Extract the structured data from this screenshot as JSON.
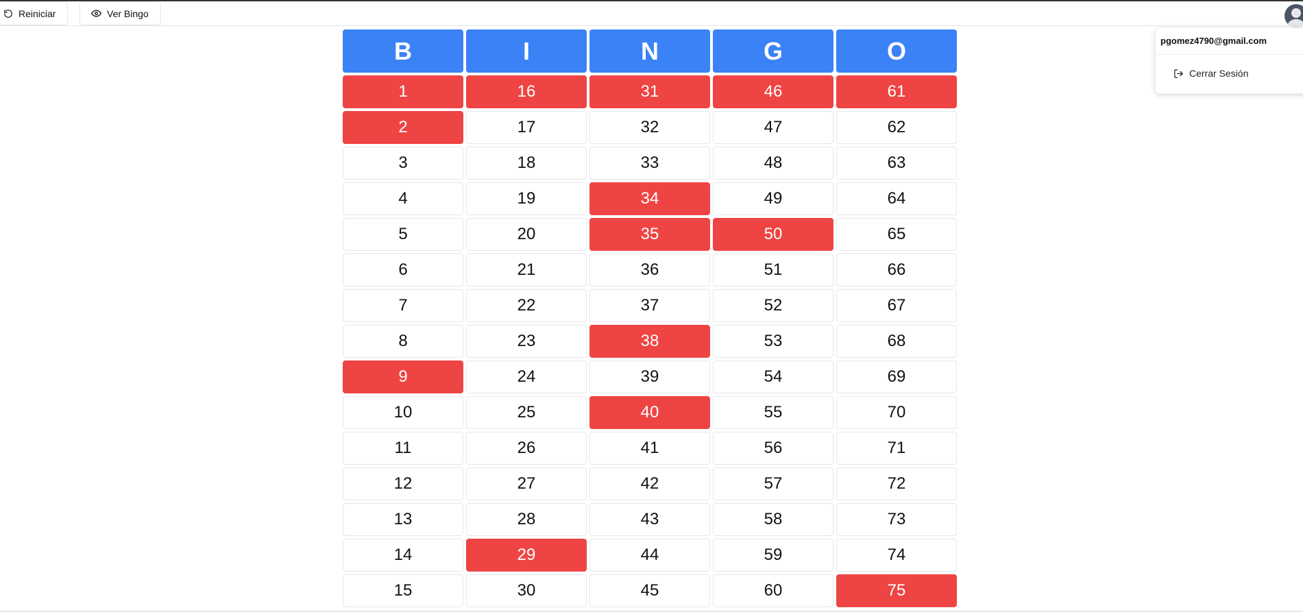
{
  "toolbar": {
    "reset_label": "Reiniciar",
    "reset_icon": "refresh-icon",
    "view_label": "Ver Bingo",
    "view_icon": "eye-icon"
  },
  "user_menu": {
    "email": "pgomez4790@gmail.com",
    "logout_label": "Cerrar Sesión",
    "logout_icon": "logout-icon"
  },
  "colors": {
    "header": "#3b82f6",
    "marked": "#ef4444",
    "unmarked": "#ffffff"
  },
  "bingo": {
    "headers": [
      "B",
      "I",
      "N",
      "G",
      "O"
    ],
    "rows": [
      [
        {
          "n": "1",
          "m": true
        },
        {
          "n": "16",
          "m": true
        },
        {
          "n": "31",
          "m": true
        },
        {
          "n": "46",
          "m": true
        },
        {
          "n": "61",
          "m": true
        }
      ],
      [
        {
          "n": "2",
          "m": true
        },
        {
          "n": "17",
          "m": false
        },
        {
          "n": "32",
          "m": false
        },
        {
          "n": "47",
          "m": false
        },
        {
          "n": "62",
          "m": false
        }
      ],
      [
        {
          "n": "3",
          "m": false
        },
        {
          "n": "18",
          "m": false
        },
        {
          "n": "33",
          "m": false
        },
        {
          "n": "48",
          "m": false
        },
        {
          "n": "63",
          "m": false
        }
      ],
      [
        {
          "n": "4",
          "m": false
        },
        {
          "n": "19",
          "m": false
        },
        {
          "n": "34",
          "m": true
        },
        {
          "n": "49",
          "m": false
        },
        {
          "n": "64",
          "m": false
        }
      ],
      [
        {
          "n": "5",
          "m": false
        },
        {
          "n": "20",
          "m": false
        },
        {
          "n": "35",
          "m": true
        },
        {
          "n": "50",
          "m": true
        },
        {
          "n": "65",
          "m": false
        }
      ],
      [
        {
          "n": "6",
          "m": false
        },
        {
          "n": "21",
          "m": false
        },
        {
          "n": "36",
          "m": false
        },
        {
          "n": "51",
          "m": false
        },
        {
          "n": "66",
          "m": false
        }
      ],
      [
        {
          "n": "7",
          "m": false
        },
        {
          "n": "22",
          "m": false
        },
        {
          "n": "37",
          "m": false
        },
        {
          "n": "52",
          "m": false
        },
        {
          "n": "67",
          "m": false
        }
      ],
      [
        {
          "n": "8",
          "m": false
        },
        {
          "n": "23",
          "m": false
        },
        {
          "n": "38",
          "m": true
        },
        {
          "n": "53",
          "m": false
        },
        {
          "n": "68",
          "m": false
        }
      ],
      [
        {
          "n": "9",
          "m": true
        },
        {
          "n": "24",
          "m": false
        },
        {
          "n": "39",
          "m": false
        },
        {
          "n": "54",
          "m": false
        },
        {
          "n": "69",
          "m": false
        }
      ],
      [
        {
          "n": "10",
          "m": false
        },
        {
          "n": "25",
          "m": false
        },
        {
          "n": "40",
          "m": true
        },
        {
          "n": "55",
          "m": false
        },
        {
          "n": "70",
          "m": false
        }
      ],
      [
        {
          "n": "11",
          "m": false
        },
        {
          "n": "26",
          "m": false
        },
        {
          "n": "41",
          "m": false
        },
        {
          "n": "56",
          "m": false
        },
        {
          "n": "71",
          "m": false
        }
      ],
      [
        {
          "n": "12",
          "m": false
        },
        {
          "n": "27",
          "m": false
        },
        {
          "n": "42",
          "m": false
        },
        {
          "n": "57",
          "m": false
        },
        {
          "n": "72",
          "m": false
        }
      ],
      [
        {
          "n": "13",
          "m": false
        },
        {
          "n": "28",
          "m": false
        },
        {
          "n": "43",
          "m": false
        },
        {
          "n": "58",
          "m": false
        },
        {
          "n": "73",
          "m": false
        }
      ],
      [
        {
          "n": "14",
          "m": false
        },
        {
          "n": "29",
          "m": true
        },
        {
          "n": "44",
          "m": false
        },
        {
          "n": "59",
          "m": false
        },
        {
          "n": "74",
          "m": false
        }
      ],
      [
        {
          "n": "15",
          "m": false
        },
        {
          "n": "30",
          "m": false
        },
        {
          "n": "45",
          "m": false
        },
        {
          "n": "60",
          "m": false
        },
        {
          "n": "75",
          "m": true
        }
      ]
    ]
  }
}
